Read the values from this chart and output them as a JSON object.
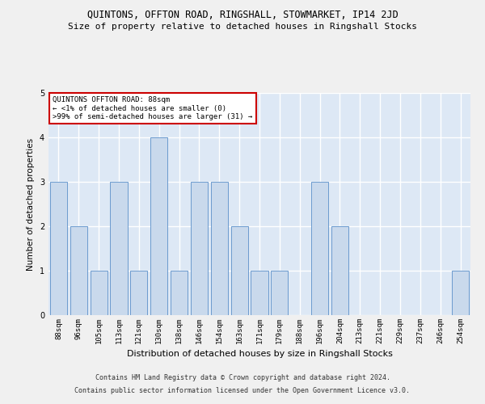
{
  "title1": "QUINTONS, OFFTON ROAD, RINGSHALL, STOWMARKET, IP14 2JD",
  "title2": "Size of property relative to detached houses in Ringshall Stocks",
  "xlabel": "Distribution of detached houses by size in Ringshall Stocks",
  "ylabel": "Number of detached properties",
  "categories": [
    "88sqm",
    "96sqm",
    "105sqm",
    "113sqm",
    "121sqm",
    "130sqm",
    "138sqm",
    "146sqm",
    "154sqm",
    "163sqm",
    "171sqm",
    "179sqm",
    "188sqm",
    "196sqm",
    "204sqm",
    "213sqm",
    "221sqm",
    "229sqm",
    "237sqm",
    "246sqm",
    "254sqm"
  ],
  "values": [
    3,
    2,
    1,
    3,
    1,
    4,
    1,
    3,
    3,
    2,
    1,
    1,
    0,
    3,
    2,
    0,
    0,
    0,
    0,
    0,
    1
  ],
  "bar_color": "#c9d9ec",
  "bar_edge_color": "#5b8fc9",
  "ylim": [
    0,
    5
  ],
  "yticks": [
    0,
    1,
    2,
    3,
    4,
    5
  ],
  "annotation_title": "QUINTONS OFFTON ROAD: 88sqm",
  "annotation_line1": "← <1% of detached houses are smaller (0)",
  "annotation_line2": ">99% of semi-detached houses are larger (31) →",
  "annotation_box_color": "#ffffff",
  "annotation_box_edge_color": "#cc0000",
  "footnote1": "Contains HM Land Registry data © Crown copyright and database right 2024.",
  "footnote2": "Contains public sector information licensed under the Open Government Licence v3.0.",
  "bg_color": "#dde8f5",
  "grid_color": "#ffffff",
  "fig_bg_color": "#f0f0f0",
  "title1_fontsize": 8.5,
  "title2_fontsize": 8,
  "xlabel_fontsize": 8,
  "ylabel_fontsize": 7.5,
  "tick_fontsize": 6.5,
  "annotation_fontsize": 6.5,
  "footnote_fontsize": 6
}
